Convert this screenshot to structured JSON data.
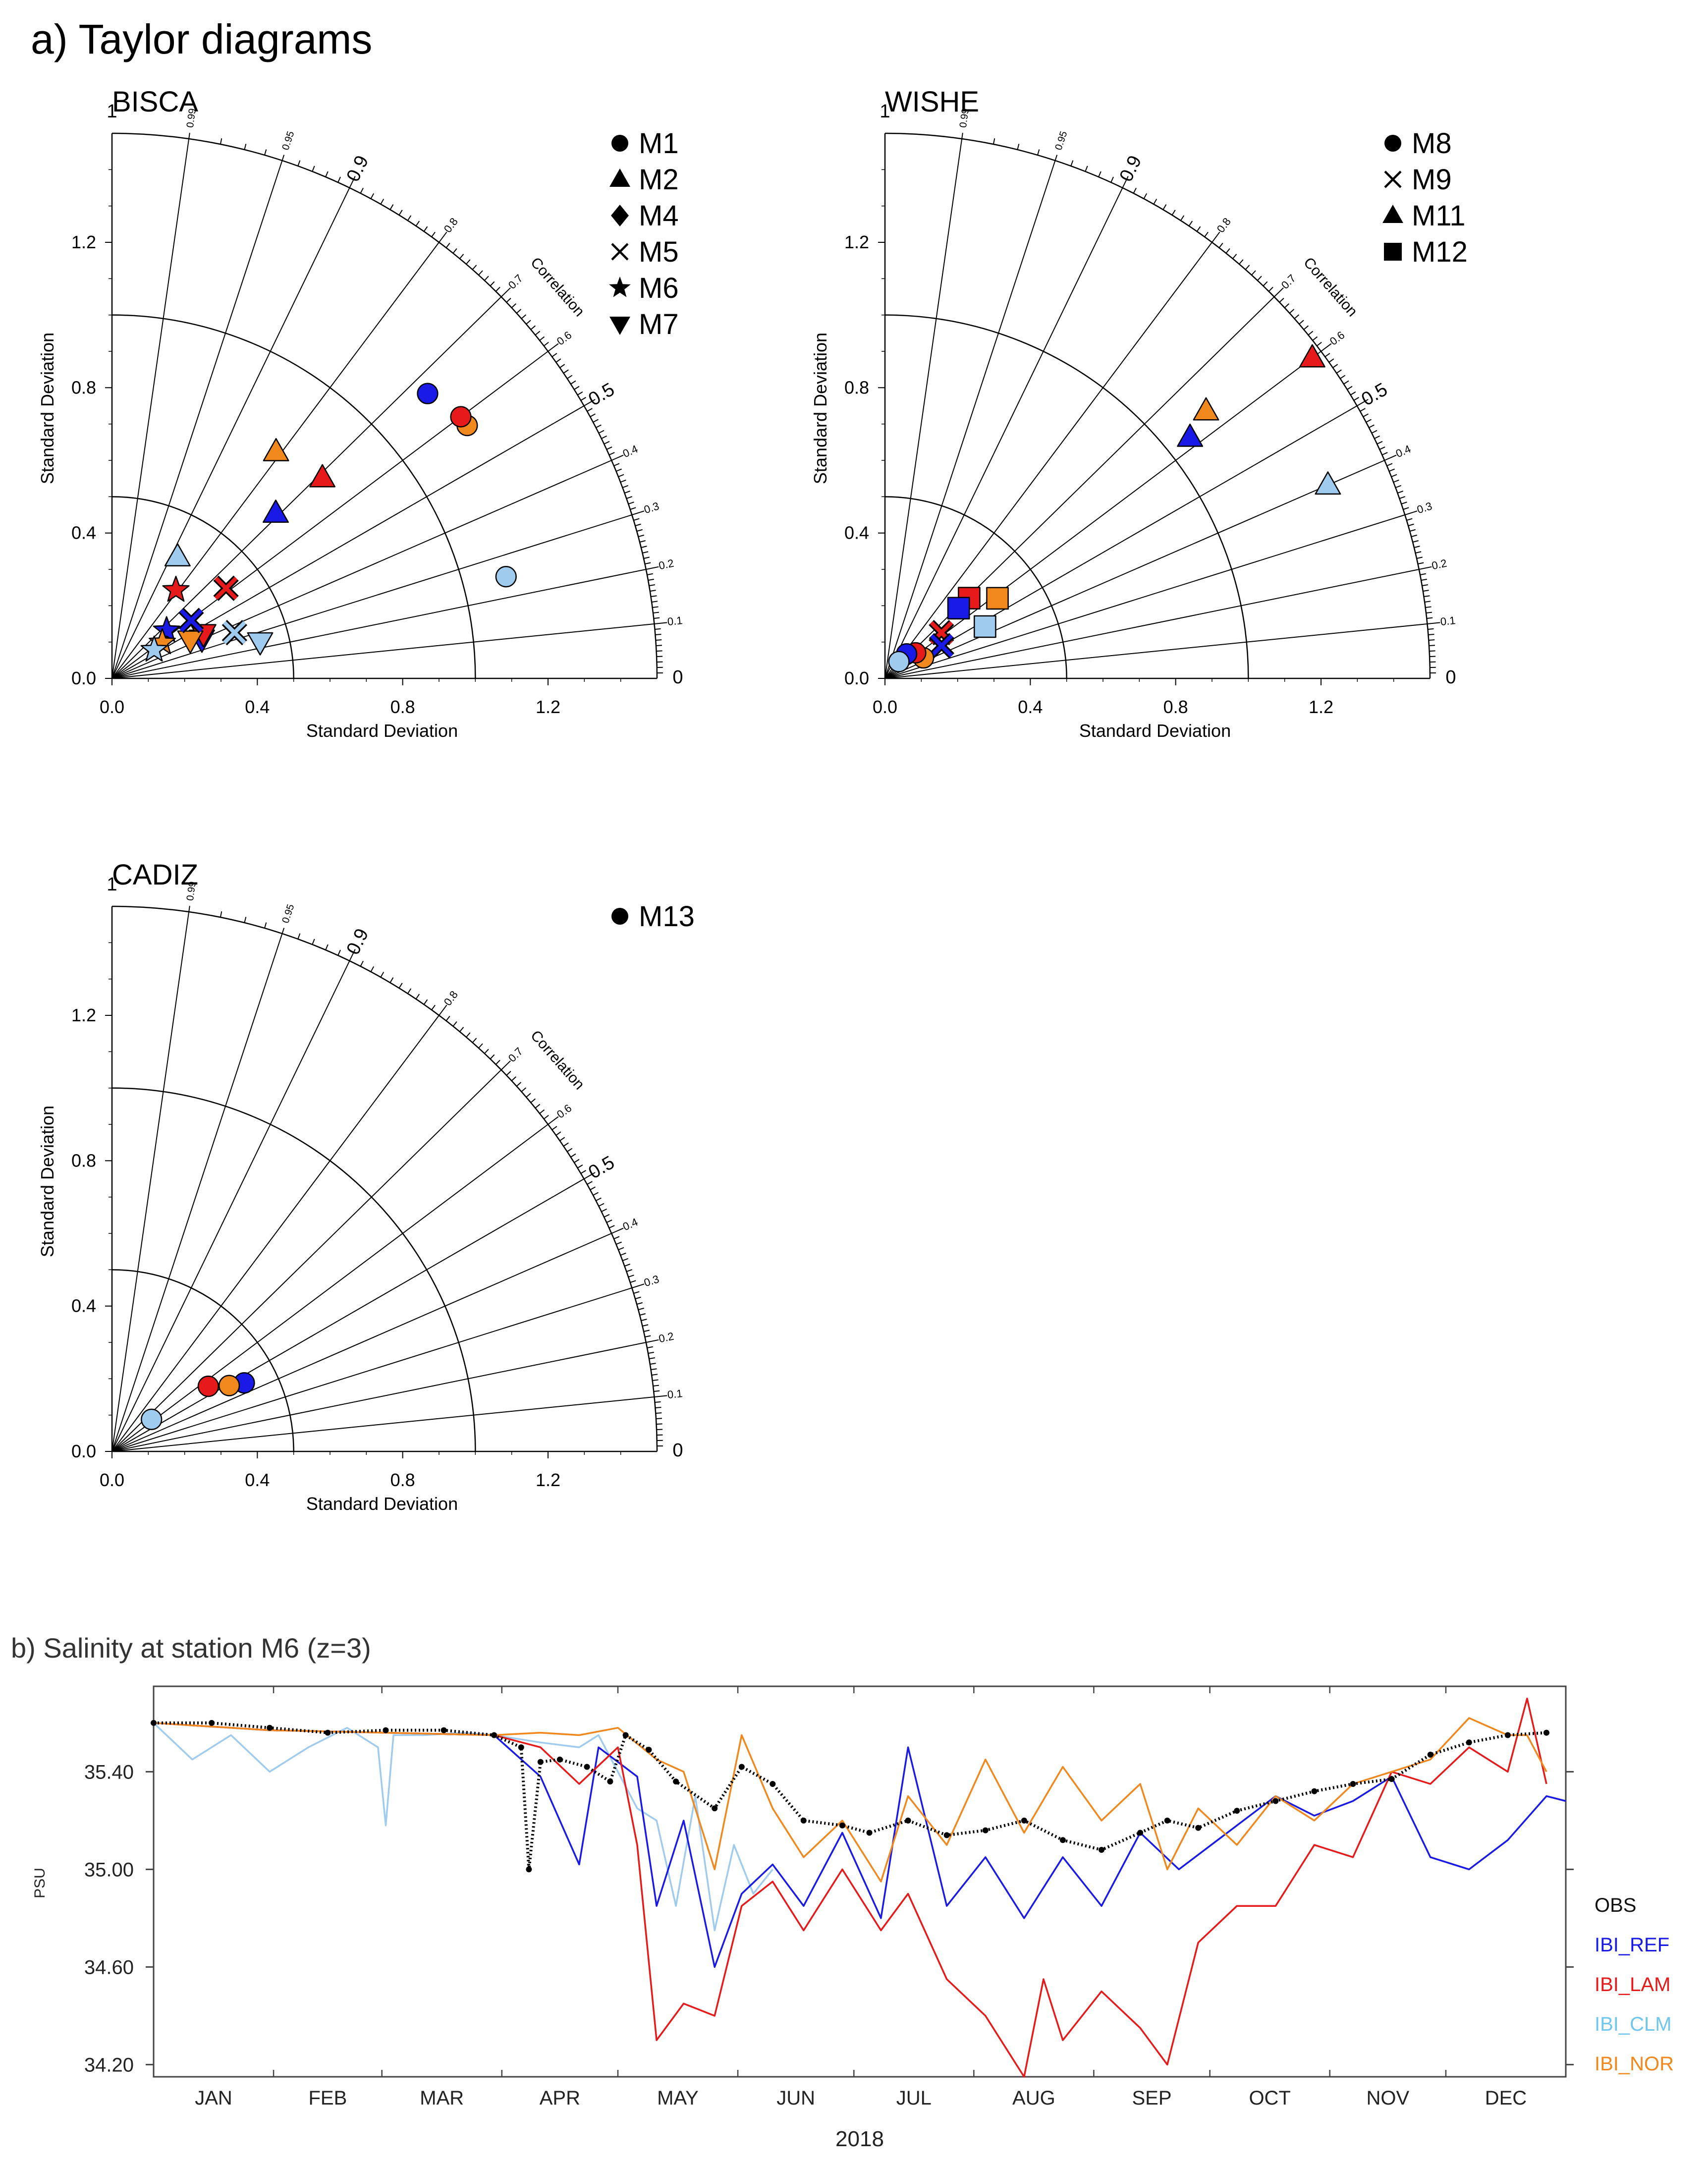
{
  "panel_a_title": "a) Taylor diagrams",
  "colors": {
    "IBI_REF": "#1a1ae6",
    "IBI_LAM": "#e61a1a",
    "IBI_CLM": "#9ecbee",
    "IBI_NOR": "#f0881e",
    "OBS": "#000000"
  },
  "taylor": {
    "axis_label": "Standard Deviation",
    "correlation_label": "Correlation",
    "std_ticks": [
      "0.0",
      "0.4",
      "0.8",
      "1.2"
    ],
    "corr_ticks": [
      "0",
      "0.1",
      "0.2",
      "0.3",
      "0.4",
      "0.5",
      "0.6",
      "0.7",
      "0.8",
      "0.9",
      "0.95",
      "0.99",
      "1"
    ]
  },
  "chart_data": [
    {
      "type": "taylor",
      "title": "BISCA",
      "std_range": [
        0,
        1.5
      ],
      "legend": [
        {
          "label": "M1",
          "marker": "circle"
        },
        {
          "label": "M2",
          "marker": "triangle-up"
        },
        {
          "label": "M4",
          "marker": "diamond"
        },
        {
          "label": "M5",
          "marker": "cross"
        },
        {
          "label": "M6",
          "marker": "star"
        },
        {
          "label": "M7",
          "marker": "triangle-down"
        }
      ],
      "points": [
        {
          "station": "M1",
          "model": "IBI_CLM",
          "std": 1.12,
          "corr": 0.25
        },
        {
          "station": "M1",
          "model": "IBI_NOR",
          "std": 1.2,
          "corr": 0.58
        },
        {
          "station": "M1",
          "model": "IBI_LAM",
          "std": 1.2,
          "corr": 0.6
        },
        {
          "station": "M1",
          "model": "IBI_REF",
          "std": 1.17,
          "corr": 0.67
        },
        {
          "station": "M2",
          "model": "IBI_LAM",
          "std": 0.8,
          "corr": 0.69
        },
        {
          "station": "M2",
          "model": "IBI_NOR",
          "std": 0.77,
          "corr": 0.81
        },
        {
          "station": "M2",
          "model": "IBI_REF",
          "std": 0.64,
          "corr": 0.71
        },
        {
          "station": "M2",
          "model": "IBI_CLM",
          "std": 0.38,
          "corr": 0.88
        },
        {
          "station": "M7",
          "model": "IBI_CLM",
          "std": 0.42,
          "corr": 0.24
        },
        {
          "station": "M5",
          "model": "IBI_CLM",
          "std": 0.36,
          "corr": 0.35
        },
        {
          "station": "M5",
          "model": "IBI_LAM",
          "std": 0.4,
          "corr": 0.62
        },
        {
          "station": "M7",
          "model": "IBI_REF",
          "std": 0.27,
          "corr": 0.4
        },
        {
          "station": "M7",
          "model": "IBI_LAM",
          "std": 0.28,
          "corr": 0.44
        },
        {
          "station": "M7",
          "model": "IBI_NOR",
          "std": 0.24,
          "corr": 0.44
        },
        {
          "station": "M5",
          "model": "IBI_REF",
          "std": 0.27,
          "corr": 0.59
        },
        {
          "station": "M6",
          "model": "IBI_LAM",
          "std": 0.3,
          "corr": 0.81
        },
        {
          "station": "M6",
          "model": "IBI_REF",
          "std": 0.2,
          "corr": 0.66
        },
        {
          "station": "M6",
          "model": "IBI_NOR",
          "std": 0.17,
          "corr": 0.58
        },
        {
          "station": "M6",
          "model": "IBI_CLM",
          "std": 0.14,
          "corr": 0.56
        }
      ]
    },
    {
      "type": "taylor",
      "title": "WISHE",
      "std_range": [
        0,
        1.5
      ],
      "legend": [
        {
          "label": "M8",
          "marker": "circle"
        },
        {
          "label": "M9",
          "marker": "cross"
        },
        {
          "label": "M11",
          "marker": "triangle-up"
        },
        {
          "label": "M12",
          "marker": "square"
        }
      ],
      "points": [
        {
          "station": "M11",
          "model": "IBI_CLM",
          "std": 1.33,
          "corr": 0.4
        },
        {
          "station": "M11",
          "model": "IBI_LAM",
          "std": 1.47,
          "corr": 0.6
        },
        {
          "station": "M11",
          "model": "IBI_NOR",
          "std": 1.15,
          "corr": 0.64
        },
        {
          "station": "M11",
          "model": "IBI_REF",
          "std": 1.07,
          "corr": 0.62
        },
        {
          "station": "M12",
          "model": "IBI_CLM",
          "std": 0.31,
          "corr": 0.46
        },
        {
          "station": "M12",
          "model": "IBI_NOR",
          "std": 0.38,
          "corr": 0.58
        },
        {
          "station": "M12",
          "model": "IBI_LAM",
          "std": 0.32,
          "corr": 0.69
        },
        {
          "station": "M12",
          "model": "IBI_REF",
          "std": 0.28,
          "corr": 0.69
        },
        {
          "station": "M9",
          "model": "IBI_LAM",
          "std": 0.2,
          "corr": 0.63
        },
        {
          "station": "M9",
          "model": "IBI_REF",
          "std": 0.18,
          "corr": 0.5
        },
        {
          "station": "M8",
          "model": "IBI_NOR",
          "std": 0.12,
          "corr": 0.47
        },
        {
          "station": "M8",
          "model": "IBI_LAM",
          "std": 0.11,
          "corr": 0.64
        },
        {
          "station": "M8",
          "model": "IBI_REF",
          "std": 0.09,
          "corr": 0.75
        },
        {
          "station": "M8",
          "model": "IBI_CLM",
          "std": 0.06,
          "corr": 0.77
        }
      ]
    },
    {
      "type": "taylor",
      "title": "CADIZ",
      "std_range": [
        0,
        1.5
      ],
      "legend": [
        {
          "label": "M13",
          "marker": "circle"
        }
      ],
      "points": [
        {
          "station": "M13",
          "model": "IBI_REF",
          "std": 0.41,
          "corr": 0.46
        },
        {
          "station": "M13",
          "model": "IBI_NOR",
          "std": 0.37,
          "corr": 0.49
        },
        {
          "station": "M13",
          "model": "IBI_LAM",
          "std": 0.32,
          "corr": 0.56
        },
        {
          "station": "M13",
          "model": "IBI_CLM",
          "std": 0.14,
          "corr": 0.63
        }
      ]
    },
    {
      "type": "line",
      "title": "b) Salinity at station M6 (z=3)",
      "xlabel": "2018",
      "ylabel": "PSU",
      "ylim": [
        34.15,
        35.75
      ],
      "yticks": [
        "35.40",
        "35.00",
        "34.60",
        "34.20"
      ],
      "ytick_values": [
        35.4,
        35.0,
        34.6,
        34.2
      ],
      "months": [
        "JAN",
        "FEB",
        "MAR",
        "APR",
        "MAY",
        "JUN",
        "JUL",
        "AUG",
        "SEP",
        "OCT",
        "NOV",
        "DEC"
      ],
      "x_domain_days": [
        0,
        365
      ],
      "legend": [
        "OBS",
        "IBI_REF",
        "IBI_LAM",
        "IBI_CLM",
        "IBI_NOR"
      ],
      "series": [
        {
          "name": "OBS",
          "style": "dots",
          "x": [
            0,
            15,
            30,
            45,
            60,
            75,
            88,
            95,
            97,
            100,
            105,
            112,
            118,
            122,
            128,
            135,
            145,
            152,
            160,
            168,
            178,
            185,
            195,
            205,
            215,
            225,
            235,
            245,
            255,
            262,
            270,
            280,
            290,
            300,
            310,
            320,
            330,
            340,
            350,
            360
          ],
          "y": [
            35.6,
            35.6,
            35.58,
            35.56,
            35.57,
            35.57,
            35.55,
            35.5,
            35.0,
            35.44,
            35.45,
            35.42,
            35.36,
            35.55,
            35.49,
            35.36,
            35.25,
            35.42,
            35.35,
            35.2,
            35.18,
            35.15,
            35.2,
            35.14,
            35.16,
            35.2,
            35.12,
            35.08,
            35.15,
            35.2,
            35.17,
            35.24,
            35.28,
            35.32,
            35.35,
            35.37,
            35.47,
            35.52,
            35.55,
            35.56
          ]
        },
        {
          "name": "IBI_REF",
          "x": [
            0,
            30,
            60,
            88,
            100,
            110,
            115,
            125,
            130,
            137,
            145,
            152,
            160,
            168,
            178,
            188,
            195,
            205,
            215,
            225,
            235,
            245,
            255,
            265,
            275,
            290,
            300,
            310,
            320,
            330,
            340,
            350,
            360,
            365
          ],
          "y": [
            35.6,
            35.57,
            35.56,
            35.55,
            35.38,
            35.02,
            35.5,
            35.38,
            34.85,
            35.2,
            34.6,
            34.9,
            35.02,
            34.85,
            35.15,
            34.8,
            35.5,
            34.85,
            35.05,
            34.8,
            35.05,
            34.85,
            35.15,
            35.0,
            35.12,
            35.3,
            35.22,
            35.28,
            35.38,
            35.05,
            35.0,
            35.12,
            35.3,
            35.28
          ]
        },
        {
          "name": "IBI_LAM",
          "x": [
            0,
            30,
            60,
            88,
            100,
            110,
            120,
            125,
            130,
            137,
            145,
            152,
            160,
            168,
            178,
            188,
            195,
            205,
            215,
            225,
            230,
            235,
            245,
            255,
            262,
            270,
            280,
            290,
            300,
            310,
            320,
            330,
            340,
            350,
            355,
            360
          ],
          "y": [
            35.6,
            35.57,
            35.56,
            35.55,
            35.5,
            35.35,
            35.5,
            35.1,
            34.3,
            34.45,
            34.4,
            34.85,
            34.95,
            34.75,
            35.0,
            34.75,
            34.9,
            34.55,
            34.4,
            34.15,
            34.55,
            34.3,
            34.5,
            34.35,
            34.2,
            34.7,
            34.85,
            34.85,
            35.1,
            35.05,
            35.4,
            35.35,
            35.5,
            35.4,
            35.7,
            35.35
          ]
        },
        {
          "name": "IBI_CLM",
          "x": [
            0,
            10,
            20,
            30,
            40,
            50,
            58,
            60,
            62,
            70,
            80,
            88,
            100,
            110,
            115,
            125,
            130,
            135,
            140,
            145,
            150,
            155,
            160
          ],
          "y": [
            35.6,
            35.45,
            35.55,
            35.4,
            35.5,
            35.58,
            35.5,
            35.18,
            35.55,
            35.55,
            35.56,
            35.55,
            35.52,
            35.5,
            35.55,
            35.25,
            35.2,
            34.85,
            35.3,
            34.75,
            35.1,
            34.9,
            35.0
          ]
        },
        {
          "name": "IBI_NOR",
          "x": [
            0,
            30,
            60,
            88,
            100,
            110,
            120,
            130,
            137,
            145,
            152,
            160,
            168,
            178,
            188,
            195,
            205,
            215,
            225,
            235,
            245,
            255,
            262,
            270,
            280,
            290,
            300,
            310,
            320,
            330,
            340,
            350,
            355,
            360
          ],
          "y": [
            35.6,
            35.57,
            35.56,
            35.55,
            35.56,
            35.55,
            35.58,
            35.45,
            35.4,
            35.0,
            35.55,
            35.25,
            35.05,
            35.2,
            34.95,
            35.3,
            35.1,
            35.45,
            35.15,
            35.42,
            35.2,
            35.35,
            35.0,
            35.25,
            35.1,
            35.3,
            35.2,
            35.35,
            35.4,
            35.45,
            35.62,
            35.55,
            35.55,
            35.4
          ]
        }
      ]
    }
  ]
}
